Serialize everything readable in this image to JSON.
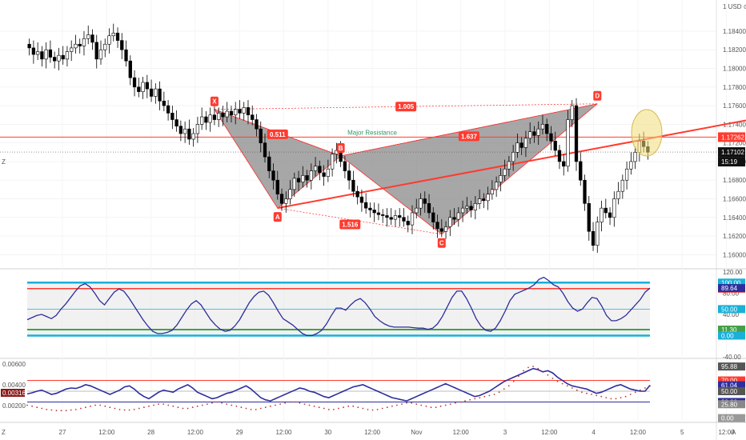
{
  "header": {
    "currency": "1 USD ⊙"
  },
  "colors": {
    "bull": "#ffffff",
    "bear": "#000000",
    "resistance": "#ff3b30",
    "pattern_fill": "#8a8a8a",
    "pattern_line": "#ff2a2a",
    "osc_line": "#2d2d9c",
    "cyan": "#1ab0d8",
    "green": "#43a047",
    "dots": "#c0392b",
    "ellipse": "#f2dc7a"
  },
  "chart_data": [
    {
      "type": "candlestick",
      "x_labels": [
        "27",
        "12:00",
        "28",
        "12:00",
        "29",
        "12:00",
        "30",
        "12:00",
        "Nov",
        "12:00",
        "3",
        "12:00",
        "4",
        "12:00",
        "5",
        "12:00"
      ],
      "y_ticks": [
        "1.18400",
        "1.18200",
        "1.18000",
        "1.17800",
        "1.17600",
        "1.17400",
        "1.17200",
        "1.17000",
        "1.16800",
        "1.16600",
        "1.16400",
        "1.16200",
        "1.16000"
      ],
      "ylim": [
        1.159,
        1.187
      ],
      "closes": [
        1.1822,
        1.1815,
        1.1818,
        1.181,
        1.182,
        1.1812,
        1.1808,
        1.1814,
        1.181,
        1.1818,
        1.1822,
        1.1826,
        1.1824,
        1.1832,
        1.1836,
        1.1828,
        1.181,
        1.182,
        1.1826,
        1.1835,
        1.1838,
        1.183,
        1.182,
        1.1808,
        1.179,
        1.178,
        1.1775,
        1.1785,
        1.1778,
        1.177,
        1.1778,
        1.1765,
        1.176,
        1.1752,
        1.1745,
        1.1738,
        1.173,
        1.1735,
        1.1724,
        1.173,
        1.174,
        1.1748,
        1.1742,
        1.175,
        1.1745,
        1.1752,
        1.1748,
        1.1754,
        1.175,
        1.1756,
        1.1752,
        1.1758,
        1.175,
        1.1745,
        1.1735,
        1.172,
        1.1705,
        1.169,
        1.168,
        1.1665,
        1.1655,
        1.166,
        1.167,
        1.1682,
        1.1678,
        1.1685,
        1.168,
        1.169,
        1.1695,
        1.1688,
        1.1684,
        1.1692,
        1.1708,
        1.1712,
        1.17,
        1.169,
        1.168,
        1.1668,
        1.1662,
        1.1656,
        1.165,
        1.1648,
        1.1645,
        1.1643,
        1.1642,
        1.164,
        1.1638,
        1.1642,
        1.164,
        1.1636,
        1.1632,
        1.1645,
        1.165,
        1.166,
        1.1655,
        1.1645,
        1.1635,
        1.1628,
        1.1625,
        1.163,
        1.164,
        1.1638,
        1.1645,
        1.165,
        1.1652,
        1.1648,
        1.1655,
        1.166,
        1.1658,
        1.1665,
        1.167,
        1.1678,
        1.1685,
        1.1692,
        1.17,
        1.171,
        1.172,
        1.1715,
        1.1725,
        1.1732,
        1.1728,
        1.1735,
        1.174,
        1.173,
        1.1722,
        1.1712,
        1.17,
        1.1695,
        1.1745,
        1.176,
        1.17,
        1.168,
        1.1655,
        1.1625,
        1.161,
        1.1635,
        1.165,
        1.1645,
        1.164,
        1.166,
        1.1668,
        1.168,
        1.1692,
        1.17,
        1.171,
        1.1722,
        1.1716,
        1.171
      ],
      "horizontal_levels": [
        {
          "label": "1.17262",
          "value": 1.17262,
          "kind": "resistance"
        },
        {
          "label": "1.17102",
          "value": 1.17102,
          "kind": "current"
        }
      ],
      "countdown": "15:19",
      "resistance_label": "Major Resistance",
      "pattern": {
        "points": [
          {
            "label": "X",
            "bar": 44,
            "price": 1.1756
          },
          {
            "label": "A",
            "bar": 59,
            "price": 1.165
          },
          {
            "label": "B",
            "bar": 74,
            "price": 1.1706
          },
          {
            "label": "C",
            "bar": 98,
            "price": 1.1622
          },
          {
            "label": "D",
            "bar": 135,
            "price": 1.1762
          }
        ],
        "ratios": [
          "0.511",
          "1.637",
          "1.516",
          "1.005"
        ],
        "trendline": {
          "from": {
            "bar": 59,
            "price": 1.165
          },
          "to": {
            "bar": 150,
            "price": 1.1727
          }
        }
      }
    },
    {
      "type": "line",
      "name": "stochastic_rsi",
      "y_ticks": [
        "120.00",
        "80.00",
        "40.00",
        "0.00",
        "-40.00"
      ],
      "ylim": [
        -40,
        120
      ],
      "levels": [
        100,
        88.6,
        50,
        11.3,
        0
      ],
      "level_tags": [
        "100.00",
        "88.60",
        "50.00",
        "11.30",
        "0.00"
      ],
      "current_tag": "89.64",
      "values": [
        30,
        34,
        38,
        40,
        36,
        32,
        38,
        50,
        60,
        72,
        84,
        94,
        98,
        92,
        80,
        66,
        58,
        70,
        82,
        88,
        84,
        72,
        58,
        44,
        30,
        18,
        8,
        4,
        4,
        6,
        10,
        20,
        34,
        48,
        60,
        66,
        58,
        44,
        30,
        20,
        12,
        8,
        10,
        18,
        30,
        46,
        62,
        74,
        82,
        84,
        76,
        62,
        46,
        32,
        26,
        20,
        12,
        4,
        0,
        0,
        4,
        10,
        22,
        38,
        52,
        52,
        48,
        58,
        66,
        70,
        62,
        50,
        36,
        28,
        22,
        18,
        16,
        16,
        16,
        16,
        15,
        14,
        14,
        12,
        14,
        22,
        36,
        54,
        72,
        84,
        84,
        70,
        52,
        32,
        18,
        10,
        8,
        14,
        28,
        46,
        66,
        78,
        82,
        86,
        90,
        96,
        106,
        110,
        104,
        96,
        92,
        80,
        64,
        52,
        46,
        50,
        62,
        72,
        70,
        56,
        38,
        28,
        28,
        32,
        38,
        48,
        58,
        68,
        82,
        89.64
      ]
    },
    {
      "type": "line",
      "name": "combined_oscillator",
      "y_ticks": [
        "0.00600",
        "0.00400",
        "0.00200"
      ],
      "left_tag": "0.00316",
      "right_tags": [
        "95.88",
        "70.00",
        "61.04",
        "50.00",
        "30.00",
        "25.80",
        "0.00"
      ],
      "ylim": [
        -5,
        105
      ],
      "levels": [
        70,
        50,
        30
      ],
      "line_values": [
        45,
        47,
        50,
        52,
        48,
        44,
        46,
        50,
        54,
        56,
        55,
        58,
        62,
        60,
        56,
        52,
        48,
        44,
        48,
        52,
        58,
        60,
        54,
        46,
        40,
        36,
        42,
        48,
        52,
        50,
        48,
        54,
        58,
        62,
        56,
        48,
        44,
        40,
        36,
        38,
        42,
        46,
        48,
        52,
        56,
        60,
        54,
        46,
        38,
        34,
        32,
        36,
        40,
        44,
        48,
        52,
        56,
        54,
        50,
        48,
        44,
        40,
        38,
        42,
        46,
        50,
        54,
        58,
        60,
        62,
        58,
        54,
        50,
        46,
        42,
        38,
        36,
        34,
        32,
        36,
        40,
        44,
        48,
        52,
        56,
        60,
        64,
        60,
        56,
        52,
        48,
        44,
        40,
        42,
        46,
        50,
        56,
        62,
        68,
        72,
        76,
        80,
        84,
        88,
        92,
        90,
        86,
        88,
        84,
        76,
        70,
        64,
        60,
        58,
        56,
        54,
        50,
        46,
        48,
        52,
        56,
        60,
        62,
        58,
        54,
        52,
        50,
        50,
        61.04
      ],
      "dot_values": [
        24,
        22,
        20,
        18,
        16,
        15,
        14,
        14,
        14,
        15,
        16,
        18,
        20,
        22,
        24,
        24,
        22,
        20,
        18,
        16,
        15,
        15,
        16,
        18,
        20,
        22,
        24,
        26,
        26,
        24,
        22,
        20,
        18,
        18,
        20,
        22,
        24,
        26,
        28,
        30,
        28,
        26,
        24,
        22,
        20,
        18,
        16,
        16,
        18,
        20,
        22,
        24,
        26,
        28,
        30,
        30,
        28,
        26,
        24,
        22,
        20,
        18,
        16,
        16,
        18,
        20,
        22,
        22,
        20,
        18,
        16,
        15,
        16,
        18,
        20,
        22,
        24,
        26,
        28,
        28,
        26,
        24,
        22,
        20,
        20,
        22,
        24,
        26,
        28,
        30,
        32,
        34,
        36,
        38,
        40,
        42,
        44,
        48,
        54,
        60,
        68,
        78,
        88,
        94,
        95.88,
        92,
        86,
        80,
        74,
        68,
        64,
        60,
        56,
        52,
        48,
        46,
        44,
        42,
        40,
        38,
        36,
        36,
        38,
        40,
        44,
        48,
        52,
        56,
        60
      ]
    }
  ]
}
